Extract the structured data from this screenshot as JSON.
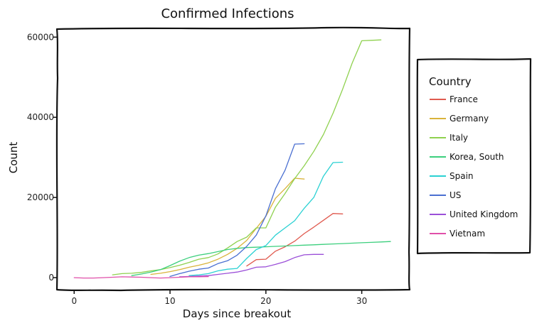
{
  "chart_data": {
    "type": "line",
    "title": "Confirmed Infections",
    "xlabel": "Days since breakout",
    "ylabel": "Count",
    "xlim": [
      -1.8,
      35
    ],
    "ylim": [
      -3000,
      62000
    ],
    "xticks": [
      0,
      10,
      20,
      30
    ],
    "yticks": [
      0,
      20000,
      40000,
      60000
    ],
    "grid": false,
    "legend": {
      "title": "Country",
      "placement": "right"
    },
    "series": [
      {
        "name": "France",
        "color": "#e05a4f",
        "x": [
          18,
          19,
          20,
          21,
          22,
          23,
          24,
          25,
          26,
          27,
          28
        ],
        "y": [
          2900,
          4500,
          4600,
          6600,
          7700,
          9100,
          11000,
          12600,
          14300,
          16000,
          15900
        ]
      },
      {
        "name": "Germany",
        "color": "#d9b33b",
        "x": [
          8,
          9,
          10,
          11,
          12,
          13,
          14,
          15,
          16,
          17,
          18,
          19,
          20,
          21,
          22,
          23,
          24
        ],
        "y": [
          800,
          1100,
          1500,
          2000,
          2600,
          3100,
          3700,
          4600,
          5800,
          7300,
          9300,
          12300,
          15300,
          19800,
          22200,
          24800,
          24600
        ]
      },
      {
        "name": "Italy",
        "color": "#8fd14f",
        "x": [
          4,
          5,
          6,
          7,
          8,
          9,
          10,
          11,
          12,
          13,
          14,
          15,
          16,
          17,
          18,
          19,
          20,
          21,
          22,
          23,
          24,
          25,
          26,
          27,
          28,
          29,
          30,
          31,
          32
        ],
        "y": [
          700,
          1000,
          1100,
          1300,
          1700,
          2000,
          2500,
          3100,
          3800,
          4600,
          5000,
          5900,
          7400,
          9000,
          10100,
          12400,
          12400,
          17600,
          21000,
          24700,
          27900,
          31500,
          35700,
          41000,
          47000,
          53500,
          59100,
          59200,
          59300
        ]
      },
      {
        "name": "Korea, South",
        "color": "#3ccf7d",
        "x": [
          6,
          7,
          8,
          9,
          10,
          11,
          12,
          13,
          14,
          15,
          16,
          17,
          18,
          19,
          20,
          21,
          22,
          23,
          24,
          25,
          26,
          27,
          28,
          29,
          30,
          31,
          32,
          33
        ],
        "y": [
          500,
          900,
          1400,
          2000,
          3000,
          4100,
          5000,
          5600,
          6000,
          6500,
          7000,
          7300,
          7500,
          7600,
          7700,
          7800,
          7900,
          8000,
          8100,
          8200,
          8300,
          8400,
          8500,
          8600,
          8700,
          8800,
          8900,
          9000
        ]
      },
      {
        "name": "Spain",
        "color": "#2bd1d3",
        "x": [
          12,
          13,
          14,
          15,
          16,
          17,
          18,
          19,
          20,
          21,
          22,
          23,
          24,
          25,
          26,
          27,
          28
        ],
        "y": [
          500,
          700,
          1000,
          1700,
          2100,
          2300,
          4800,
          7000,
          8000,
          10600,
          12400,
          14200,
          17300,
          20000,
          25300,
          28700,
          28800
        ]
      },
      {
        "name": "US",
        "color": "#4a6fd1",
        "x": [
          10,
          11,
          12,
          13,
          14,
          15,
          16,
          17,
          18,
          19,
          20,
          21,
          22,
          23,
          24
        ],
        "y": [
          300,
          1000,
          1600,
          2100,
          2400,
          3500,
          4200,
          5600,
          7800,
          10600,
          15400,
          22200,
          26800,
          33300,
          33400
        ]
      },
      {
        "name": "United Kingdom",
        "color": "#9b4fd8",
        "x": [
          11,
          12,
          13,
          14,
          15,
          16,
          17,
          18,
          19,
          20,
          21,
          22,
          23,
          24,
          25,
          26
        ],
        "y": [
          200,
          300,
          400,
          500,
          800,
          1100,
          1400,
          1900,
          2600,
          2700,
          3300,
          4000,
          5000,
          5700,
          5800,
          5800
        ]
      },
      {
        "name": "Vietnam",
        "color": "#e04fa9",
        "x": [
          0,
          1,
          2,
          3,
          4,
          5,
          6,
          7,
          8,
          9,
          10,
          11,
          12,
          13,
          14
        ],
        "y": [
          0,
          -100,
          -100,
          0,
          100,
          200,
          150,
          100,
          0,
          -100,
          0,
          100,
          200,
          200,
          250
        ]
      }
    ]
  }
}
